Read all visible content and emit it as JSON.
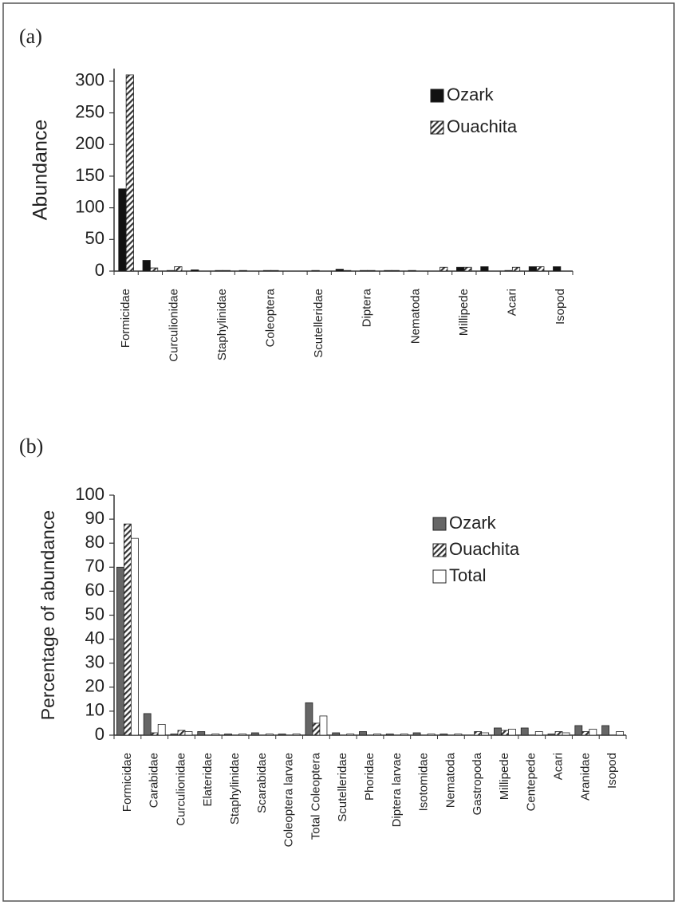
{
  "chart_data": [
    {
      "type": "bar",
      "title": "(a)",
      "y_label": "Abundance",
      "categories": [
        "Formicidae",
        null,
        "Curculionidae",
        null,
        "Staphylinidae",
        null,
        "Coleoptera",
        null,
        "Scutelleridae",
        null,
        "Diptera",
        null,
        "Nematoda",
        null,
        "Millipede",
        null,
        "Acari",
        null,
        "Isopod"
      ],
      "series": [
        {
          "name": "Ozark",
          "color": "#111111",
          "pattern": "solid",
          "values": [
            130,
            17,
            1,
            2,
            1,
            1,
            1,
            0,
            1,
            3,
            1,
            1,
            1,
            0,
            6,
            7,
            1,
            7,
            7
          ]
        },
        {
          "name": "Ouachita",
          "color": "#333333",
          "pattern": "hatch",
          "values": [
            310,
            5,
            7,
            0,
            1,
            0,
            1,
            0,
            0,
            1,
            1,
            1,
            0,
            6,
            6,
            0,
            6,
            7,
            0
          ]
        }
      ],
      "ylim": [
        0,
        320
      ],
      "yticks": [
        0,
        50,
        100,
        150,
        200,
        250,
        300
      ],
      "grid": false,
      "legend": "upper right"
    },
    {
      "type": "bar",
      "title": "(b)",
      "y_label": "Percentage of abundance",
      "categories": [
        "Formicidae",
        "Carabidae",
        "Curculionidae",
        "Elateridae",
        "Staphylinidae",
        "Scarabidae",
        "Coleoptera larvae",
        "Total Coleoptera",
        "Scutelleridae",
        "Phoridae",
        "Diptera larvae",
        "Isotomidae",
        "Nematoda",
        "Gastropoda",
        "Millipede",
        "Centepede",
        "Acari",
        "Aranidae",
        "Isopod"
      ],
      "series": [
        {
          "name": "Ozark",
          "color": "#666666",
          "pattern": "solid",
          "values": [
            70,
            9,
            0.5,
            1.5,
            0.5,
            1,
            0.5,
            13.5,
            1,
            1.5,
            0.5,
            1,
            0.5,
            0,
            3,
            3,
            0.5,
            4,
            4
          ]
        },
        {
          "name": "Ouachita",
          "color": "#333333",
          "pattern": "hatch",
          "values": [
            88,
            1,
            2,
            0,
            0,
            0,
            0,
            5,
            0,
            0,
            0,
            0,
            0,
            1.5,
            2,
            0,
            1.5,
            1.5,
            0
          ]
        },
        {
          "name": "Total",
          "color": "#ffffff",
          "pattern": "solid",
          "values": [
            82,
            4.5,
            1.5,
            0.5,
            0.5,
            0.5,
            0.5,
            8,
            0.5,
            0.5,
            0.5,
            0.5,
            0.5,
            1,
            2.5,
            1.5,
            1,
            2.5,
            1.5
          ]
        }
      ],
      "ylim": [
        0,
        100
      ],
      "yticks": [
        0,
        10,
        20,
        30,
        40,
        50,
        60,
        70,
        80,
        90,
        100
      ],
      "grid": false,
      "legend": "upper right"
    }
  ]
}
